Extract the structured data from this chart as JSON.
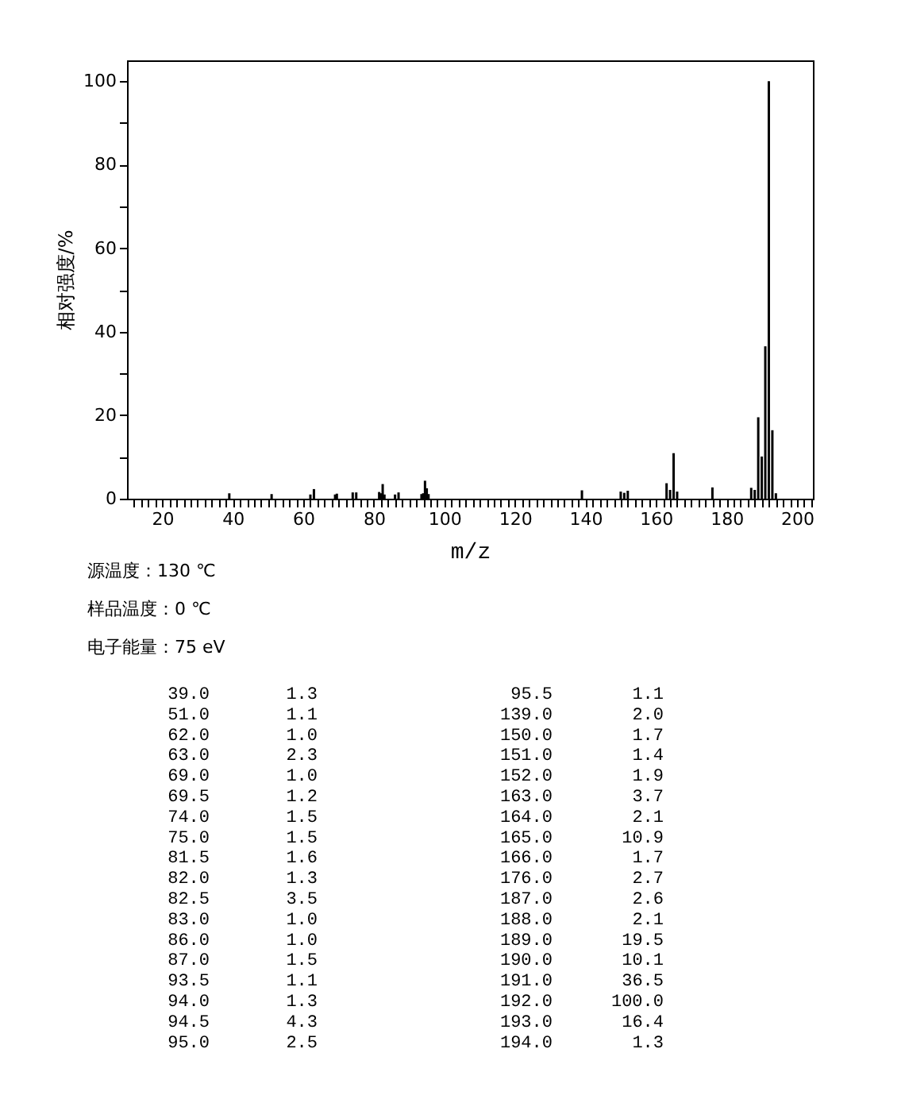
{
  "chart_data": [
    {
      "type": "bar",
      "xlabel": "m/z",
      "ylabel": "相对强度/%",
      "x": [
        39.0,
        51.0,
        62.0,
        63.0,
        69.0,
        69.5,
        74.0,
        75.0,
        81.5,
        82.0,
        82.5,
        83.0,
        86.0,
        87.0,
        93.5,
        94.0,
        94.5,
        95.0,
        95.5,
        139.0,
        150.0,
        151.0,
        152.0,
        163.0,
        164.0,
        165.0,
        166.0,
        176.0,
        187.0,
        188.0,
        189.0,
        190.0,
        191.0,
        192.0,
        193.0,
        194.0
      ],
      "series": [
        {
          "color": "#000000",
          "values": [
            1.3,
            1.1,
            1.0,
            2.3,
            1.0,
            1.2,
            1.5,
            1.5,
            1.6,
            1.3,
            3.5,
            1.0,
            1.0,
            1.5,
            1.1,
            1.3,
            4.3,
            2.5,
            1.1,
            2.0,
            1.7,
            1.4,
            1.9,
            3.7,
            2.1,
            10.9,
            1.7,
            2.7,
            2.6,
            2.1,
            19.5,
            10.1,
            36.5,
            100.0,
            16.4,
            1.3
          ]
        }
      ],
      "xlim": [
        10,
        204.5
      ],
      "ylim": [
        0,
        105
      ],
      "xticks": [
        {
          "value": 12,
          "label": null
        },
        {
          "value": 14,
          "label": null
        },
        {
          "value": 16,
          "label": null
        },
        {
          "value": 18,
          "label": null
        },
        20,
        {
          "value": 22,
          "label": null
        },
        {
          "value": 24,
          "label": null
        },
        {
          "value": 26,
          "label": null
        },
        {
          "value": 28,
          "label": null
        },
        {
          "value": 30,
          "label": null
        },
        {
          "value": 32,
          "label": null
        },
        {
          "value": 34,
          "label": null
        },
        {
          "value": 36,
          "label": null
        },
        {
          "value": 38,
          "label": null
        },
        40,
        {
          "value": 42,
          "label": null
        },
        {
          "value": 44,
          "label": null
        },
        {
          "value": 46,
          "label": null
        },
        {
          "value": 48,
          "label": null
        },
        {
          "value": 50,
          "label": null
        },
        {
          "value": 52,
          "label": null
        },
        {
          "value": 54,
          "label": null
        },
        {
          "value": 56,
          "label": null
        },
        {
          "value": 58,
          "label": null
        },
        60,
        {
          "value": 62,
          "label": null
        },
        {
          "value": 64,
          "label": null
        },
        {
          "value": 66,
          "label": null
        },
        {
          "value": 68,
          "label": null
        },
        {
          "value": 70,
          "label": null
        },
        {
          "value": 72,
          "label": null
        },
        {
          "value": 74,
          "label": null
        },
        {
          "value": 76,
          "label": null
        },
        {
          "value": 78,
          "label": null
        },
        80,
        {
          "value": 82,
          "label": null
        },
        {
          "value": 84,
          "label": null
        },
        {
          "value": 86,
          "label": null
        },
        {
          "value": 88,
          "label": null
        },
        {
          "value": 90,
          "label": null
        },
        {
          "value": 92,
          "label": null
        },
        {
          "value": 94,
          "label": null
        },
        {
          "value": 96,
          "label": null
        },
        {
          "value": 98,
          "label": null
        },
        100,
        {
          "value": 102,
          "label": null
        },
        {
          "value": 104,
          "label": null
        },
        {
          "value": 106,
          "label": null
        },
        {
          "value": 108,
          "label": null
        },
        {
          "value": 110,
          "label": null
        },
        {
          "value": 112,
          "label": null
        },
        {
          "value": 114,
          "label": null
        },
        {
          "value": 116,
          "label": null
        },
        {
          "value": 118,
          "label": null
        },
        120,
        {
          "value": 122,
          "label": null
        },
        {
          "value": 124,
          "label": null
        },
        {
          "value": 126,
          "label": null
        },
        {
          "value": 128,
          "label": null
        },
        {
          "value": 130,
          "label": null
        },
        {
          "value": 132,
          "label": null
        },
        {
          "value": 134,
          "label": null
        },
        {
          "value": 136,
          "label": null
        },
        {
          "value": 138,
          "label": null
        },
        140,
        {
          "value": 142,
          "label": null
        },
        {
          "value": 144,
          "label": null
        },
        {
          "value": 146,
          "label": null
        },
        {
          "value": 148,
          "label": null
        },
        {
          "value": 150,
          "label": null
        },
        {
          "value": 152,
          "label": null
        },
        {
          "value": 154,
          "label": null
        },
        {
          "value": 156,
          "label": null
        },
        {
          "value": 158,
          "label": null
        },
        160,
        {
          "value": 162,
          "label": null
        },
        {
          "value": 164,
          "label": null
        },
        {
          "value": 166,
          "label": null
        },
        {
          "value": 168,
          "label": null
        },
        {
          "value": 170,
          "label": null
        },
        {
          "value": 172,
          "label": null
        },
        {
          "value": 174,
          "label": null
        },
        {
          "value": 176,
          "label": null
        },
        {
          "value": 178,
          "label": null
        },
        180,
        {
          "value": 182,
          "label": null
        },
        {
          "value": 184,
          "label": null
        },
        {
          "value": 186,
          "label": null
        },
        {
          "value": 188,
          "label": null
        },
        {
          "value": 190,
          "label": null
        },
        {
          "value": 192,
          "label": null
        },
        {
          "value": 194,
          "label": null
        },
        {
          "value": 196,
          "label": null
        },
        {
          "value": 198,
          "label": null
        },
        200,
        {
          "value": 202,
          "label": null
        },
        {
          "value": 204,
          "label": null
        }
      ],
      "yticks": [
        0,
        {
          "value": 10,
          "label": null
        },
        20,
        {
          "value": 30,
          "label": null
        },
        40,
        {
          "value": 50,
          "label": null
        },
        60,
        {
          "value": 70,
          "label": null
        },
        80,
        {
          "value": 90,
          "label": null
        },
        100
      ],
      "annotations": [
        "源温度：130 ℃",
        "样品温度：0 ℃",
        "电子能量：75 eV"
      ]
    },
    {
      "type": "other",
      "annotations": [
        "39.0",
        "1.3",
        "95.5",
        "1.1",
        "51.0",
        "1.1",
        "139.0",
        "2.0",
        "62.0",
        "1.0",
        "150.0",
        "1.7",
        "63.0",
        "2.3",
        "151.0",
        "1.4",
        "69.0",
        "1.0",
        "152.0",
        "1.9",
        "69.5",
        "1.2",
        "163.0",
        "3.7",
        "74.0",
        "1.5",
        "164.0",
        "2.1",
        "75.0",
        "1.5",
        "165.0",
        "10.9",
        "81.5",
        "1.6",
        "166.0",
        "1.7",
        "82.0",
        "1.3",
        "176.0",
        "2.7",
        "82.5",
        "3.5",
        "187.0",
        "2.6",
        "83.0",
        "1.0",
        "188.0",
        "2.1",
        "86.0",
        "1.0",
        "189.0",
        "19.5",
        "87.0",
        "1.5",
        "190.0",
        "10.1",
        "93.5",
        "1.1",
        "191.0",
        "36.5",
        "94.0",
        "1.3",
        "192.0",
        "100.0",
        "94.5",
        "4.3",
        "193.0",
        "16.4",
        "95.0",
        "2.5",
        "194.0",
        "1.3"
      ]
    }
  ]
}
